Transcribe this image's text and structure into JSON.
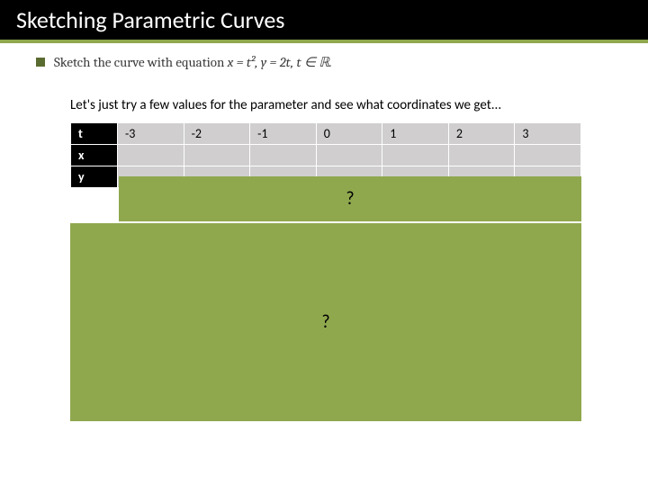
{
  "title": "Sketching Parametric Curves",
  "equation_prefix": "Sketch the curve with equation ",
  "equation_body": "x = t², y = 2t, t ∈ ℝ.",
  "instruction": "Let's just try a few values for the parameter and see what coordinates we get...",
  "table": {
    "row_labels": [
      "t",
      "x",
      "y"
    ],
    "t_values": [
      "-3",
      "-2",
      "-1",
      "0",
      "1",
      "2",
      "3"
    ]
  },
  "overlay_text_1": "?",
  "overlay_text_2": "?",
  "colors": {
    "title_bg": "#000000",
    "accent": "#8fa84e",
    "table_header_bg": "#000000",
    "table_cell_bg": "#d0cece",
    "overlay_bg": "#8fa84e"
  }
}
